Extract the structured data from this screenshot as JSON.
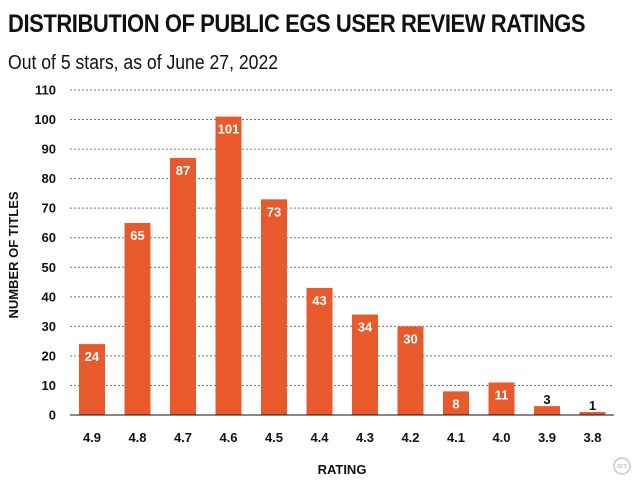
{
  "chart_data": {
    "type": "bar",
    "title": "DISTRIBUTION OF PUBLIC EGS USER REVIEW RATINGS",
    "subtitle": "Out of 5 stars, as of June 27, 2022",
    "xlabel": "RATING",
    "ylabel": "NUMBER OF TITLES",
    "categories": [
      "4.9",
      "4.8",
      "4.7",
      "4.6",
      "4.5",
      "4.4",
      "4.3",
      "4.2",
      "4.1",
      "4.0",
      "3.9",
      "3.8"
    ],
    "values": [
      24,
      65,
      87,
      101,
      73,
      43,
      34,
      30,
      8,
      11,
      3,
      1
    ],
    "ylim": [
      0,
      110
    ],
    "yticks": [
      0,
      10,
      20,
      30,
      40,
      50,
      60,
      70,
      80,
      90,
      100,
      110
    ],
    "grid": true,
    "bar_color": "#e8592b"
  },
  "logo_text": "ars"
}
